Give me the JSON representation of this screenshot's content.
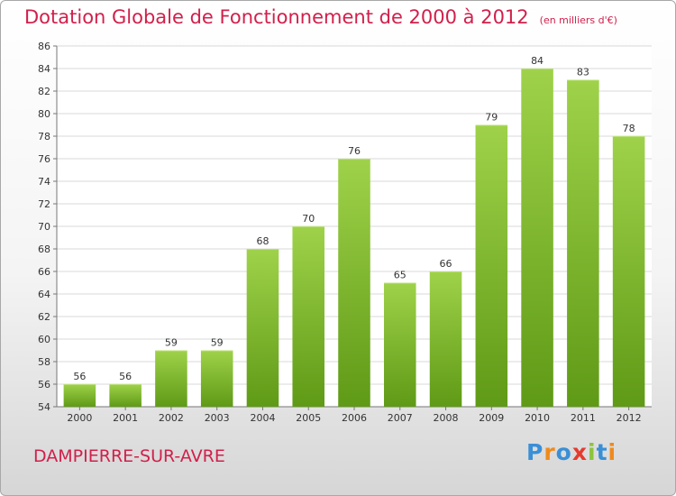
{
  "title": "Dotation Globale de Fonctionnement de 2000 à 2012",
  "subtitle": "(en milliers d'€)",
  "commune": "DAMPIERRE-SUR-AVRE",
  "logo": {
    "text": "Proxiti",
    "letters": [
      {
        "char": "P",
        "color": "#3a8fd6"
      },
      {
        "char": "r",
        "color": "#f08a1c"
      },
      {
        "char": "o",
        "color": "#3a8fd6"
      },
      {
        "char": "x",
        "color": "#e63a2e"
      },
      {
        "char": "i",
        "color": "#8cc43c"
      },
      {
        "char": "t",
        "color": "#3a8fd6"
      },
      {
        "char": "i",
        "color": "#f08a1c"
      }
    ]
  },
  "colors": {
    "title": "#d1204b",
    "bar_top": "#9fd24a",
    "bar_bottom": "#5f9a16",
    "grid": "#d8d8d8"
  },
  "chart_data": {
    "type": "bar",
    "categories": [
      "2000",
      "2001",
      "2002",
      "2003",
      "2004",
      "2005",
      "2006",
      "2007",
      "2008",
      "2009",
      "2010",
      "2011",
      "2012"
    ],
    "values": [
      56,
      56,
      59,
      59,
      68,
      70,
      76,
      65,
      66,
      79,
      84,
      83,
      78
    ],
    "data_labels": [
      "56",
      "56",
      "59",
      "59",
      "68",
      "70",
      "76",
      "65",
      "66",
      "79",
      "84",
      "83",
      "78"
    ],
    "yticks": [
      "54",
      "56",
      "58",
      "60",
      "62",
      "64",
      "66",
      "68",
      "70",
      "72",
      "74",
      "76",
      "78",
      "80",
      "82",
      "84",
      "86"
    ],
    "ylim": [
      54,
      86
    ],
    "grid": true,
    "title": "Dotation Globale de Fonctionnement de 2000 à 2012",
    "xlabel": "",
    "ylabel": ""
  }
}
